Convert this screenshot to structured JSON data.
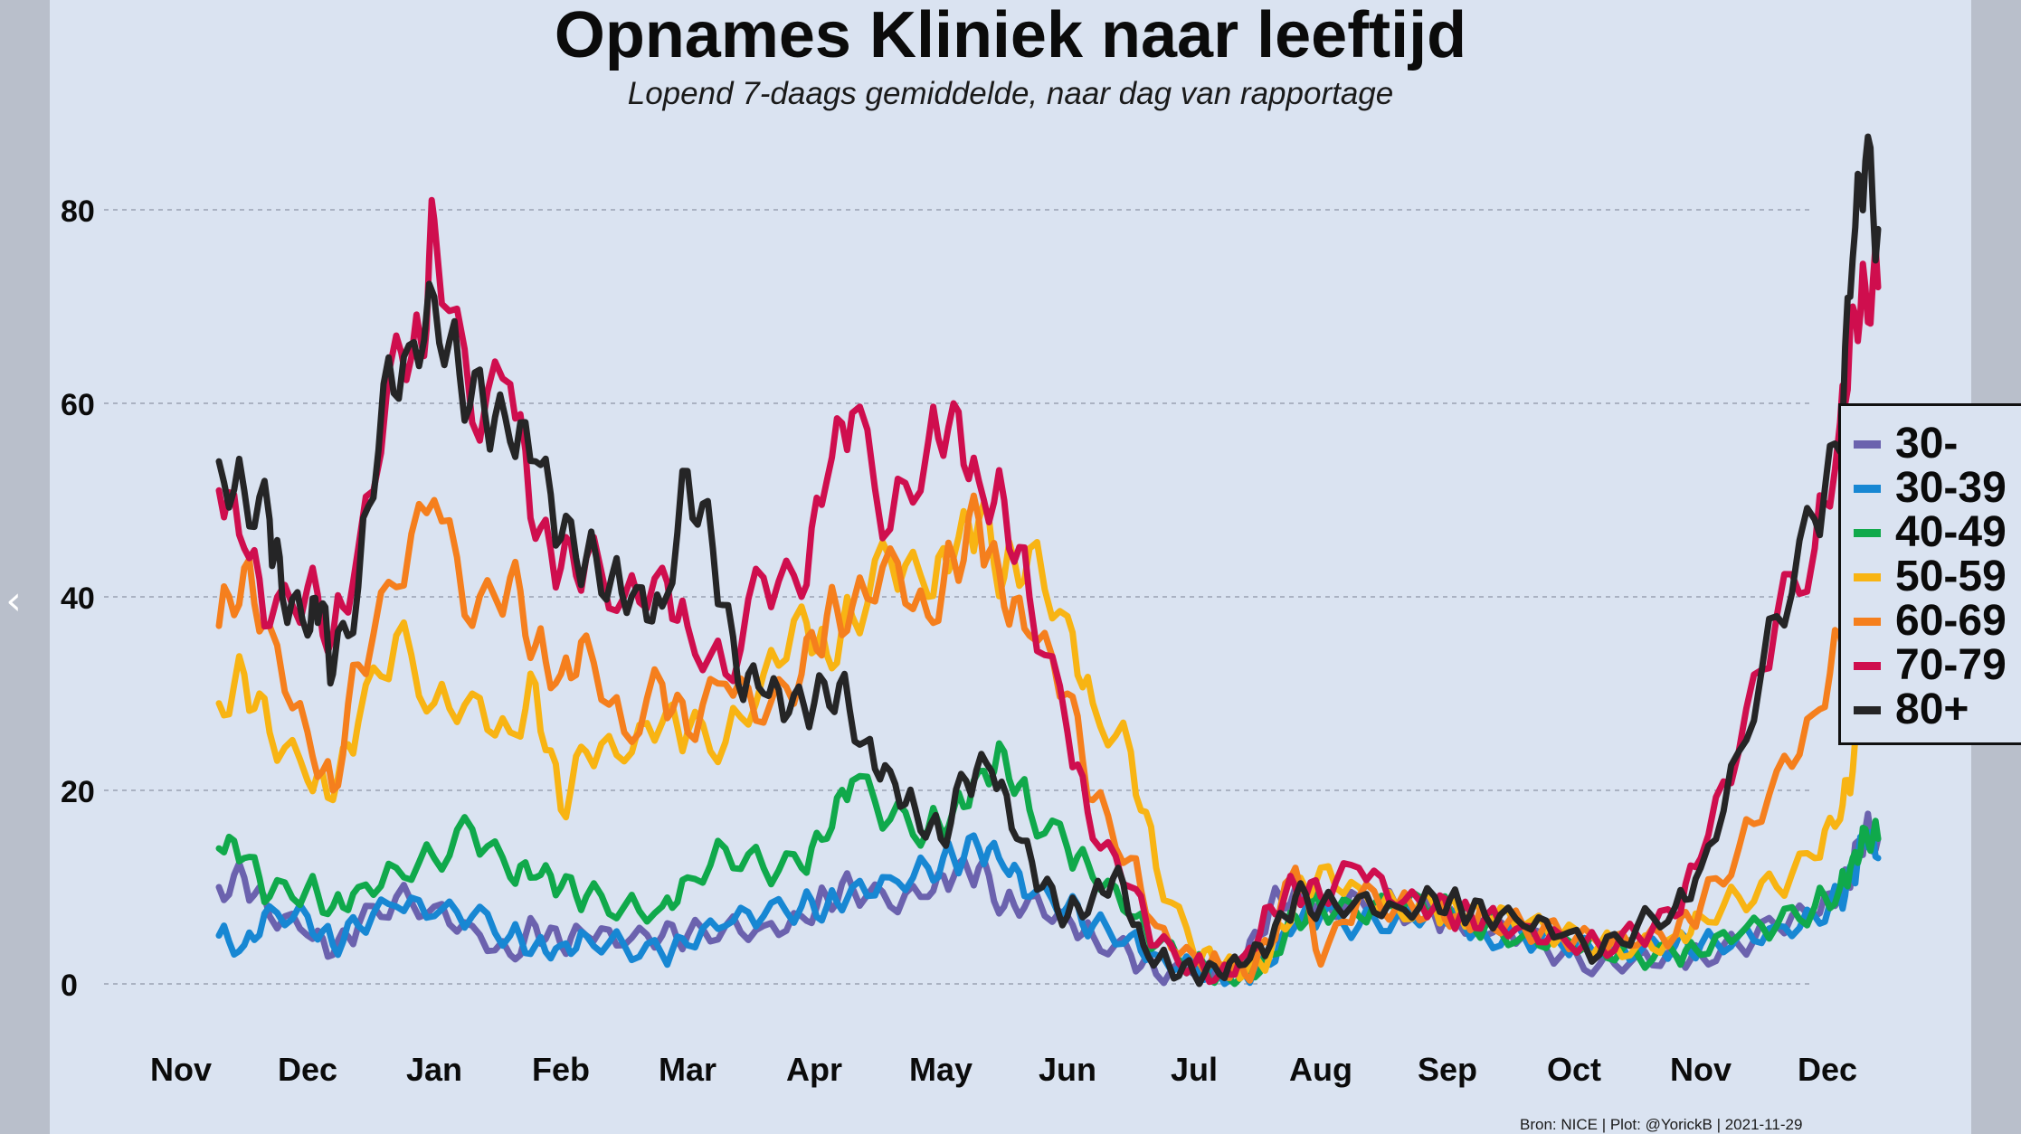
{
  "title": "Opnames Kliniek naar leeftijd",
  "subtitle": "Lopend 7-daags gemiddelde, naar dag van rapportage",
  "source": "Bron: NICE | Plot: @YorickB  |  2021-11-29",
  "nav": {
    "prev_icon": "chevron-left-icon",
    "next_icon": "chevron-right-icon",
    "prev_glyph": "‹",
    "next_glyph": "›"
  },
  "chart_data": {
    "type": "line",
    "title": "Opnames Kliniek naar leeftijd",
    "subtitle": "Lopend 7-daags gemiddelde, naar dag van rapportage",
    "xlabel": "",
    "ylabel": "",
    "x_tick_labels": [
      "Nov",
      "Dec",
      "Jan",
      "Feb",
      "Mar",
      "Apr",
      "May",
      "Jun",
      "Jul",
      "Aug",
      "Sep",
      "Oct",
      "Nov",
      "Dec"
    ],
    "y_ticks": [
      0,
      20,
      40,
      60,
      80
    ],
    "ylim": [
      0,
      85
    ],
    "grid": "horizontal dashed",
    "legend_position": "right",
    "x_index_note": "x is month index from start of the first Nov tick (0 = Nov 1, 2020)",
    "series": [
      {
        "name": "30-",
        "color": "#6b62ae",
        "x": [
          0.3,
          0.5,
          0.7,
          1.0,
          1.2,
          1.4,
          1.7,
          2.0,
          2.3,
          2.6,
          2.8,
          3.0,
          3.2,
          3.5,
          3.8,
          4.0,
          4.3,
          4.6,
          4.9,
          5.1,
          5.3,
          5.6,
          5.9,
          6.1,
          6.3,
          6.5,
          6.7,
          7.0,
          7.2,
          7.5,
          7.7,
          8.0,
          8.2,
          8.4,
          8.6,
          8.8,
          9.0,
          9.3,
          9.6,
          9.9,
          10.1,
          10.3,
          10.6,
          10.9,
          11.2,
          11.5,
          11.8,
          12.0,
          12.3,
          12.6,
          12.9,
          13.1,
          13.2,
          13.3,
          13.4
        ],
        "y": [
          10,
          11,
          7,
          5,
          3,
          6,
          9,
          8,
          6,
          3,
          6,
          4,
          5,
          4,
          5,
          5,
          6,
          6,
          7,
          9,
          10,
          8,
          9,
          11,
          12,
          8,
          9,
          7,
          5,
          3,
          1,
          1,
          1,
          2,
          8,
          10,
          8,
          9,
          8,
          7,
          6,
          5,
          5,
          3,
          2,
          3,
          3,
          3,
          4,
          6,
          7,
          9,
          12,
          16,
          15
        ]
      },
      {
        "name": "30-39",
        "color": "#1787d3",
        "x": [
          0.3,
          0.5,
          0.7,
          1.0,
          1.2,
          1.4,
          1.7,
          2.0,
          2.3,
          2.6,
          2.8,
          3.0,
          3.2,
          3.5,
          3.8,
          4.0,
          4.3,
          4.6,
          4.9,
          5.1,
          5.3,
          5.6,
          5.9,
          6.1,
          6.3,
          6.5,
          6.7,
          7.0,
          7.2,
          7.5,
          7.7,
          8.0,
          8.2,
          8.4,
          8.6,
          8.8,
          9.0,
          9.3,
          9.6,
          9.9,
          10.1,
          10.3,
          10.6,
          10.9,
          11.2,
          11.5,
          11.8,
          12.0,
          12.3,
          12.6,
          12.9,
          13.1,
          13.2,
          13.3,
          13.4
        ],
        "y": [
          5,
          4,
          8,
          7,
          4,
          6,
          8,
          7,
          7,
          5,
          4,
          4,
          5,
          4,
          3,
          4,
          6,
          7,
          8,
          8,
          10,
          11,
          12,
          13,
          14,
          12,
          9,
          8,
          6,
          5,
          3,
          2,
          1,
          1,
          2,
          6,
          7,
          6,
          7,
          8,
          7,
          5,
          5,
          4,
          3,
          3,
          4,
          4,
          5,
          6,
          7,
          9,
          11,
          15,
          13
        ]
      },
      {
        "name": "40-49",
        "color": "#10a94b",
        "x": [
          0.3,
          0.5,
          0.7,
          1.0,
          1.2,
          1.4,
          1.7,
          2.0,
          2.3,
          2.6,
          2.8,
          3.0,
          3.2,
          3.5,
          3.8,
          4.0,
          4.3,
          4.6,
          4.9,
          5.1,
          5.3,
          5.6,
          5.9,
          6.1,
          6.3,
          6.5,
          6.7,
          7.0,
          7.2,
          7.5,
          7.7,
          8.0,
          8.2,
          8.4,
          8.6,
          8.8,
          9.0,
          9.3,
          9.6,
          9.9,
          10.1,
          10.3,
          10.6,
          10.9,
          11.2,
          11.5,
          11.8,
          12.0,
          12.3,
          12.6,
          12.9,
          13.1,
          13.2,
          13.3,
          13.4
        ],
        "y": [
          14,
          13,
          9,
          10,
          8,
          10,
          12,
          13,
          16,
          11,
          11,
          10,
          9,
          8,
          8,
          11,
          14,
          12,
          12,
          15,
          21,
          17,
          16,
          18,
          22,
          24,
          18,
          14,
          11,
          7,
          4,
          2,
          1,
          1,
          3,
          7,
          8,
          7,
          8,
          8,
          7,
          6,
          5,
          5,
          4,
          3,
          3,
          3,
          5,
          6,
          8,
          10,
          13,
          16,
          15
        ]
      },
      {
        "name": "50-59",
        "color": "#f8b413",
        "x": [
          0.3,
          0.5,
          0.7,
          1.0,
          1.2,
          1.4,
          1.7,
          2.0,
          2.3,
          2.6,
          2.8,
          3.0,
          3.2,
          3.5,
          3.8,
          4.0,
          4.3,
          4.6,
          4.9,
          5.1,
          5.3,
          5.6,
          5.9,
          6.1,
          6.3,
          6.5,
          6.7,
          7.0,
          7.2,
          7.5,
          7.7,
          8.0,
          8.2,
          8.4,
          8.6,
          8.8,
          9.0,
          9.3,
          9.6,
          9.9,
          10.1,
          10.3,
          10.6,
          10.9,
          11.2,
          11.5,
          11.8,
          12.0,
          12.3,
          12.6,
          12.9,
          13.1,
          13.2,
          13.3,
          13.4
        ],
        "y": [
          29,
          32,
          26,
          21,
          19,
          27,
          36,
          29,
          30,
          26,
          31,
          18,
          24,
          23,
          27,
          26,
          25,
          32,
          39,
          34,
          38,
          44,
          40,
          44,
          48,
          42,
          45,
          38,
          29,
          24,
          12,
          3,
          2,
          1,
          3,
          9,
          12,
          10,
          8,
          8,
          7,
          7,
          6,
          5,
          4,
          4,
          5,
          7,
          9,
          10,
          13,
          17,
          22,
          30,
          29
        ]
      },
      {
        "name": "60-69",
        "color": "#f57f1d",
        "x": [
          0.3,
          0.5,
          0.7,
          1.0,
          1.2,
          1.4,
          1.7,
          2.0,
          2.3,
          2.6,
          2.8,
          3.0,
          3.2,
          3.5,
          3.8,
          4.0,
          4.3,
          4.6,
          4.9,
          5.1,
          5.3,
          5.6,
          5.9,
          6.1,
          6.3,
          6.5,
          6.7,
          7.0,
          7.2,
          7.5,
          7.7,
          8.0,
          8.2,
          8.4,
          8.6,
          8.8,
          9.0,
          9.3,
          9.6,
          9.9,
          10.1,
          10.3,
          10.6,
          10.9,
          11.2,
          11.5,
          11.8,
          12.0,
          12.3,
          12.6,
          12.9,
          13.1,
          13.2,
          13.3,
          13.4
        ],
        "y": [
          37,
          43,
          37,
          26,
          20,
          33,
          41,
          50,
          37,
          42,
          35,
          32,
          36,
          26,
          31,
          26,
          31,
          27,
          32,
          38,
          39,
          45,
          38,
          44,
          48,
          39,
          36,
          30,
          19,
          13,
          6,
          3,
          2,
          1,
          4,
          12,
          2,
          9,
          8,
          8,
          7,
          7,
          6,
          5,
          4,
          4,
          5,
          8,
          14,
          22,
          28,
          36,
          43,
          49,
          46
        ]
      },
      {
        "name": "70-79",
        "color": "#cf0e4e",
        "x": [
          0.3,
          0.5,
          0.7,
          1.0,
          1.2,
          1.4,
          1.7,
          1.9,
          2.0,
          2.3,
          2.6,
          2.8,
          3.0,
          3.2,
          3.5,
          3.8,
          4.0,
          4.3,
          4.6,
          4.9,
          5.1,
          5.3,
          5.6,
          5.9,
          6.1,
          6.3,
          6.5,
          6.7,
          7.0,
          7.2,
          7.5,
          7.7,
          8.0,
          8.2,
          8.4,
          8.6,
          8.8,
          9.0,
          9.3,
          9.6,
          9.9,
          10.1,
          10.3,
          10.6,
          10.9,
          11.2,
          11.5,
          11.8,
          12.0,
          12.3,
          12.6,
          12.9,
          13.1,
          13.2,
          13.3,
          13.4
        ],
        "y": [
          51,
          45,
          37,
          41,
          36,
          45,
          67,
          66,
          79,
          58,
          62,
          46,
          43,
          44,
          40,
          43,
          37,
          32,
          42,
          40,
          52,
          59,
          47,
          56,
          60,
          52,
          50,
          40,
          26,
          15,
          10,
          4,
          2,
          1,
          3,
          8,
          10,
          9,
          12,
          8,
          8,
          7,
          7,
          6,
          5,
          4,
          5,
          7,
          13,
          24,
          38,
          45,
          58,
          70,
          72,
          72
        ]
      },
      {
        "name": "80+",
        "color": "#252526",
        "x": [
          0.3,
          0.5,
          0.7,
          0.8,
          1.0,
          1.1,
          1.2,
          1.4,
          1.6,
          1.8,
          2.0,
          2.2,
          2.4,
          2.6,
          2.8,
          3.0,
          3.2,
          3.4,
          3.6,
          3.8,
          4.0,
          4.2,
          4.4,
          4.6,
          4.8,
          5.0,
          5.2,
          5.4,
          5.6,
          5.8,
          6.0,
          6.2,
          6.4,
          6.6,
          6.8,
          7.0,
          7.2,
          7.4,
          7.6,
          7.8,
          8.0,
          8.2,
          8.4,
          8.6,
          8.8,
          9.0,
          9.3,
          9.6,
          9.9,
          10.1,
          10.3,
          10.6,
          10.9,
          11.2,
          11.5,
          11.8,
          12.0,
          12.3,
          12.6,
          12.9,
          13.1,
          13.2,
          13.3,
          13.4
        ],
        "y": [
          54,
          51,
          48,
          40,
          36,
          39,
          32,
          41,
          62,
          66,
          71,
          63,
          59,
          56,
          54,
          46,
          44,
          42,
          41,
          39,
          53,
          45,
          31,
          30,
          28,
          29,
          31,
          25,
          22,
          18,
          15,
          21,
          22,
          15,
          10,
          7,
          9,
          12,
          4,
          2,
          1,
          1,
          2,
          4,
          9,
          8,
          9,
          8,
          9,
          8,
          7,
          6,
          5,
          3,
          6,
          8,
          12,
          24,
          38,
          48,
          55,
          75,
          85,
          78
        ]
      }
    ]
  }
}
